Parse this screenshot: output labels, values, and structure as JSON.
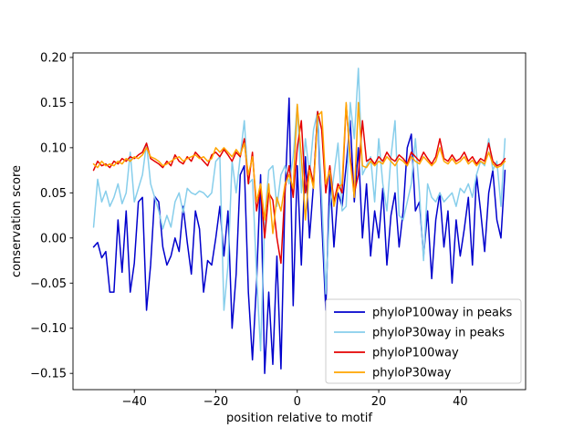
{
  "figure": {
    "background": "#ffffff"
  },
  "chart_data": {
    "type": "line",
    "title": "",
    "xlabel": "position relative to motif",
    "ylabel": "conservation score",
    "xlim": [
      -55.05,
      56.05
    ],
    "ylim": [
      -0.168,
      0.205
    ],
    "xticks": [
      -40,
      -20,
      0,
      20,
      40
    ],
    "yticks": [
      -0.15,
      -0.1,
      -0.05,
      0.0,
      0.05,
      0.1,
      0.15,
      0.2
    ],
    "grid": false,
    "legend_position": "lower right",
    "x": [
      -50,
      -49,
      -48,
      -47,
      -46,
      -45,
      -44,
      -43,
      -42,
      -41,
      -40,
      -39,
      -38,
      -37,
      -36,
      -35,
      -34,
      -33,
      -32,
      -31,
      -30,
      -29,
      -28,
      -27,
      -26,
      -25,
      -24,
      -23,
      -22,
      -21,
      -20,
      -19,
      -18,
      -17,
      -16,
      -15,
      -14,
      -13,
      -12,
      -11,
      -10,
      -9,
      -8,
      -7,
      -6,
      -5,
      -4,
      -3,
      -2,
      -1,
      0,
      1,
      2,
      3,
      4,
      5,
      6,
      7,
      8,
      9,
      10,
      11,
      12,
      13,
      14,
      15,
      16,
      17,
      18,
      19,
      20,
      21,
      22,
      23,
      24,
      25,
      26,
      27,
      28,
      29,
      30,
      31,
      32,
      33,
      34,
      35,
      36,
      37,
      38,
      39,
      40,
      41,
      42,
      43,
      44,
      45,
      46,
      47,
      48,
      49,
      50,
      51
    ],
    "series": [
      {
        "name": "phyloP100way in peaks",
        "color": "#0000cd",
        "values": [
          -0.01,
          -0.005,
          -0.022,
          -0.015,
          -0.06,
          -0.06,
          0.02,
          -0.038,
          0.03,
          -0.06,
          -0.028,
          0.04,
          0.045,
          -0.08,
          -0.03,
          0.046,
          0.04,
          -0.01,
          -0.03,
          -0.02,
          0.0,
          -0.015,
          0.035,
          -0.005,
          -0.04,
          0.03,
          0.01,
          -0.06,
          -0.025,
          -0.03,
          0.0,
          0.035,
          -0.02,
          0.03,
          -0.1,
          -0.04,
          0.07,
          0.08,
          -0.06,
          -0.135,
          -0.05,
          0.07,
          -0.15,
          -0.06,
          -0.14,
          -0.02,
          -0.145,
          0.05,
          0.155,
          -0.075,
          0.08,
          -0.03,
          0.09,
          0.0,
          0.06,
          0.14,
          0.02,
          -0.08,
          0.07,
          -0.01,
          0.05,
          0.035,
          0.08,
          0.13,
          0.04,
          0.1,
          0.0,
          0.06,
          -0.02,
          0.03,
          0.0,
          0.055,
          -0.03,
          0.025,
          0.05,
          -0.01,
          0.03,
          0.1,
          0.115,
          0.03,
          0.04,
          -0.02,
          0.03,
          -0.045,
          0.02,
          0.05,
          -0.01,
          0.03,
          -0.05,
          0.02,
          -0.02,
          0.01,
          0.045,
          -0.03,
          0.07,
          0.03,
          -0.015,
          0.05,
          0.075,
          0.02,
          0.0,
          0.075
        ]
      },
      {
        "name": "phyloP30way in peaks",
        "color": "#87ceeb",
        "values": [
          0.012,
          0.065,
          0.04,
          0.052,
          0.035,
          0.045,
          0.06,
          0.038,
          0.05,
          0.095,
          0.04,
          0.055,
          0.07,
          0.105,
          0.06,
          0.045,
          0.03,
          0.01,
          0.025,
          0.012,
          0.04,
          0.05,
          0.028,
          0.055,
          0.05,
          0.048,
          0.052,
          0.05,
          0.045,
          0.05,
          0.085,
          0.09,
          -0.08,
          -0.03,
          0.085,
          0.05,
          0.09,
          0.13,
          0.06,
          0.065,
          -0.04,
          -0.125,
          0.02,
          0.075,
          0.08,
          0.035,
          0.07,
          0.08,
          0.06,
          0.09,
          0.148,
          0.05,
          0.11,
          0.07,
          0.12,
          0.14,
          0.045,
          -0.062,
          0.035,
          0.07,
          0.105,
          0.03,
          0.035,
          0.15,
          0.11,
          0.188,
          0.07,
          0.08,
          0.09,
          0.04,
          0.11,
          0.06,
          0.03,
          0.09,
          0.13,
          0.025,
          0.02,
          0.04,
          0.06,
          0.11,
          0.05,
          -0.025,
          0.06,
          0.045,
          0.04,
          0.05,
          0.04,
          0.045,
          0.05,
          0.035,
          0.055,
          0.05,
          0.06,
          0.045,
          0.07,
          0.085,
          0.08,
          0.11,
          0.075,
          0.085,
          0.035,
          0.11
        ]
      },
      {
        "name": "phyloP100way",
        "color": "#e50000",
        "values": [
          0.075,
          0.085,
          0.08,
          0.082,
          0.078,
          0.085,
          0.082,
          0.088,
          0.085,
          0.09,
          0.088,
          0.092,
          0.095,
          0.105,
          0.088,
          0.085,
          0.082,
          0.078,
          0.085,
          0.08,
          0.092,
          0.085,
          0.082,
          0.09,
          0.085,
          0.095,
          0.09,
          0.085,
          0.08,
          0.092,
          0.095,
          0.09,
          0.098,
          0.092,
          0.085,
          0.095,
          0.09,
          0.11,
          0.06,
          0.095,
          0.03,
          0.055,
          0.0,
          0.05,
          0.042,
          0.0,
          -0.028,
          0.055,
          0.08,
          0.045,
          0.1,
          0.13,
          0.05,
          0.08,
          0.06,
          0.14,
          0.12,
          0.05,
          0.08,
          0.04,
          0.06,
          0.05,
          0.148,
          0.09,
          0.05,
          0.07,
          0.13,
          0.085,
          0.088,
          0.082,
          0.09,
          0.085,
          0.095,
          0.088,
          0.085,
          0.092,
          0.088,
          0.082,
          0.095,
          0.09,
          0.085,
          0.095,
          0.088,
          0.082,
          0.09,
          0.11,
          0.088,
          0.085,
          0.092,
          0.085,
          0.088,
          0.095,
          0.085,
          0.09,
          0.082,
          0.088,
          0.085,
          0.105,
          0.085,
          0.08,
          0.082,
          0.088
        ]
      },
      {
        "name": "phyloP30way",
        "color": "#ffa500",
        "values": [
          0.082,
          0.078,
          0.085,
          0.08,
          0.082,
          0.08,
          0.085,
          0.082,
          0.088,
          0.085,
          0.09,
          0.088,
          0.092,
          0.1,
          0.09,
          0.088,
          0.085,
          0.08,
          0.082,
          0.085,
          0.088,
          0.09,
          0.085,
          0.088,
          0.09,
          0.092,
          0.088,
          0.09,
          0.085,
          0.088,
          0.1,
          0.095,
          0.1,
          0.095,
          0.09,
          0.098,
          0.092,
          0.105,
          0.07,
          0.09,
          0.04,
          0.06,
          0.02,
          0.06,
          0.005,
          0.045,
          0.03,
          0.06,
          0.07,
          0.055,
          0.148,
          0.09,
          0.02,
          0.075,
          0.055,
          0.135,
          0.14,
          0.06,
          0.075,
          0.035,
          0.055,
          0.06,
          0.15,
          0.085,
          0.045,
          0.15,
          0.08,
          0.078,
          0.085,
          0.08,
          0.085,
          0.082,
          0.09,
          0.085,
          0.08,
          0.088,
          0.085,
          0.08,
          0.09,
          0.085,
          0.082,
          0.09,
          0.085,
          0.08,
          0.085,
          0.1,
          0.085,
          0.082,
          0.088,
          0.082,
          0.085,
          0.09,
          0.082,
          0.086,
          0.08,
          0.085,
          0.082,
          0.095,
          0.082,
          0.078,
          0.08,
          0.085
        ]
      }
    ]
  }
}
